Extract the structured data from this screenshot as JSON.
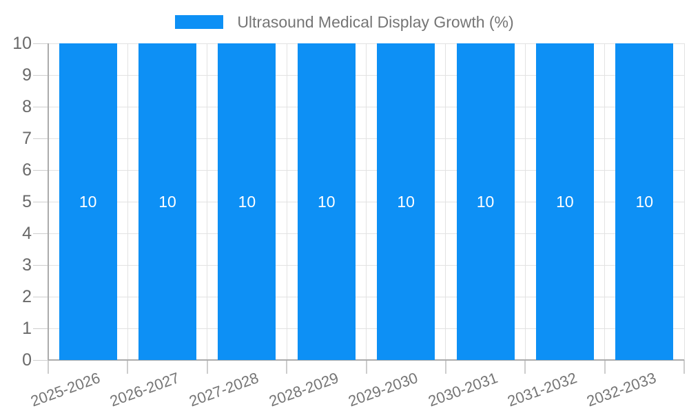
{
  "chart_data": {
    "type": "bar",
    "title": "Ultrasound Medical Display Growth (%)",
    "categories": [
      "2025-2026",
      "2026-2027",
      "2027-2028",
      "2028-2029",
      "2029-2030",
      "2030-2031",
      "2031-2032",
      "2032-2033"
    ],
    "values": [
      10,
      10,
      10,
      10,
      10,
      10,
      10,
      10
    ],
    "xlabel": "",
    "ylabel": "",
    "ylim": [
      0,
      10
    ],
    "yticks": [
      0,
      1,
      2,
      3,
      4,
      5,
      6,
      7,
      8,
      9,
      10
    ],
    "grid": true,
    "legend_position": "top-center",
    "colors": {
      "bar": "#0d90f5",
      "bar_label": "#ffffff",
      "gridline": "#e2e2e2",
      "axis": "#ababab",
      "tick": "#cdcdcd",
      "y_tick_label": "#696969",
      "x_tick_label": "#757575",
      "legend_text": "#757575",
      "background": "#ffffff"
    }
  }
}
